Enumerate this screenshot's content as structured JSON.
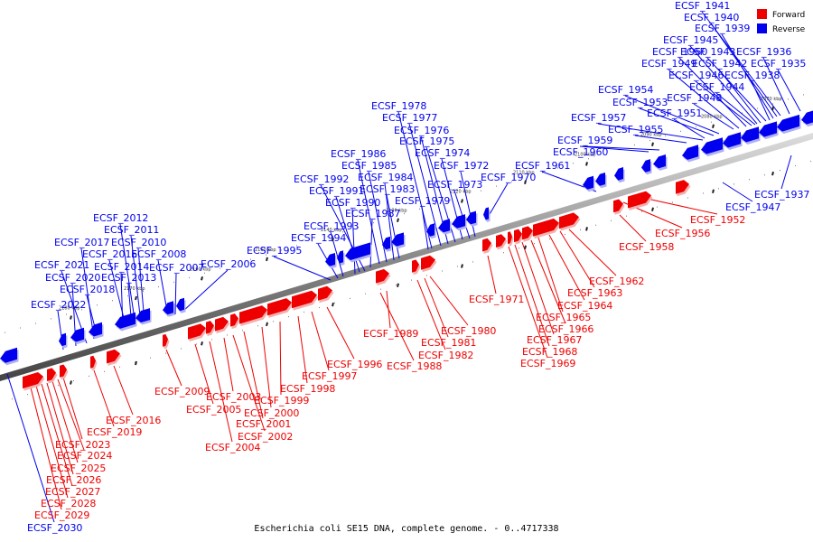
{
  "caption": "Escherichia coli SE15 DNA, complete genome. - 0..4717338",
  "legend": [
    {
      "label": "Forward",
      "color": "#ee0000"
    },
    {
      "label": "Reverse",
      "color": "#0000ee"
    }
  ],
  "colors": {
    "forward": "#ee0000",
    "reverse": "#0000ee",
    "backbone": "#999999",
    "backbone_edge": "#555555"
  },
  "ticks": [
    "2070 kbp",
    "2080 kbp",
    "2090 kbp",
    "2100 kbp",
    "2110 kbp",
    "2120 kbp",
    "2130 kbp",
    "2140 kbp",
    "2150 kbp",
    "2160 kbp",
    "2170 kbp",
    "2180 kbp"
  ],
  "reverse_genes": [
    "ECSF_1935",
    "ECSF_1936",
    "ECSF_1937",
    "ECSF_1938",
    "ECSF_1939",
    "ECSF_1940",
    "ECSF_1941",
    "ECSF_1942",
    "ECSF_1943",
    "ECSF_1944",
    "ECSF_1945",
    "ECSF_1946",
    "ECSF_1947",
    "ECSF_1948",
    "ECSF_1949",
    "ECSF_1950",
    "ECSF_1951",
    "ECSF_1953",
    "ECSF_1954",
    "ECSF_1955",
    "ECSF_1957",
    "ECSF_1959",
    "ECSF_1960",
    "ECSF_1961",
    "ECSF_1970",
    "ECSF_1972",
    "ECSF_1973",
    "ECSF_1974",
    "ECSF_1975",
    "ECSF_1976",
    "ECSF_1977",
    "ECSF_1978",
    "ECSF_1979",
    "ECSF_1983",
    "ECSF_1984",
    "ECSF_1985",
    "ECSF_1986",
    "ECSF_1987",
    "ECSF_1990",
    "ECSF_1991",
    "ECSF_1992",
    "ECSF_1993",
    "ECSF_1994",
    "ECSF_1995",
    "ECSF_2006",
    "ECSF_2007",
    "ECSF_2008",
    "ECSF_2010",
    "ECSF_2011",
    "ECSF_2012",
    "ECSF_2013",
    "ECSF_2014",
    "ECSF_2015",
    "ECSF_2017",
    "ECSF_2018",
    "ECSF_2020",
    "ECSF_2021",
    "ECSF_2022",
    "ECSF_2030"
  ],
  "forward_genes": [
    "ECSF_1952",
    "ECSF_1956",
    "ECSF_1958",
    "ECSF_1962",
    "ECSF_1963",
    "ECSF_1964",
    "ECSF_1965",
    "ECSF_1966",
    "ECSF_1967",
    "ECSF_1968",
    "ECSF_1969",
    "ECSF_1971",
    "ECSF_1980",
    "ECSF_1981",
    "ECSF_1982",
    "ECSF_1988",
    "ECSF_1989",
    "ECSF_1996",
    "ECSF_1997",
    "ECSF_1998",
    "ECSF_1999",
    "ECSF_2000",
    "ECSF_2001",
    "ECSF_2002",
    "ECSF_2003",
    "ECSF_2004",
    "ECSF_2005",
    "ECSF_2009",
    "ECSF_2016",
    "ECSF_2019",
    "ECSF_2023",
    "ECSF_2024",
    "ECSF_2025",
    "ECSF_2026",
    "ECSF_2027",
    "ECSF_2028",
    "ECSF_2029"
  ]
}
